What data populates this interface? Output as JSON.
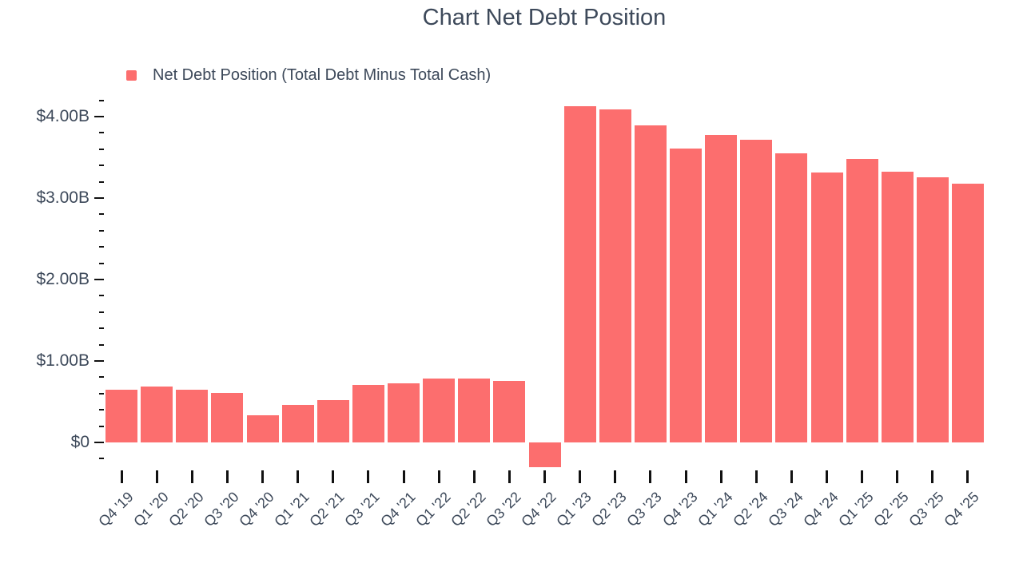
{
  "chart": {
    "title": "Chart Net Debt Position",
    "colors": {
      "bar": "#FC6E6E",
      "text": "#3D495A",
      "tick": "#111111",
      "background": "#FFFFFF"
    }
  },
  "chart_data": {
    "type": "bar",
    "title": "Chart Net Debt Position",
    "unit": "USD billions",
    "categories": [
      "Q4 '19",
      "Q1 '20",
      "Q2 '20",
      "Q3 '20",
      "Q4 '20",
      "Q1 '21",
      "Q2 '21",
      "Q3 '21",
      "Q4 '21",
      "Q1 '22",
      "Q2 '22",
      "Q3 '22",
      "Q4 '22",
      "Q1 '23",
      "Q2 '23",
      "Q3 '23",
      "Q4 '23",
      "Q1 '24",
      "Q2 '24",
      "Q3 '24",
      "Q4 '24",
      "Q1 '25",
      "Q2 '25",
      "Q3 '25",
      "Q4 '25"
    ],
    "series": [
      {
        "name": "Net Debt Position (Total Debt Minus Total Cash)",
        "color": "#FC6E6E",
        "values": [
          0.65,
          0.69,
          0.65,
          0.61,
          0.33,
          0.46,
          0.52,
          0.71,
          0.73,
          0.78,
          0.78,
          0.75,
          -0.3,
          4.13,
          4.09,
          3.89,
          3.61,
          3.77,
          3.72,
          3.55,
          3.31,
          3.48,
          3.32,
          3.25,
          3.18
        ]
      }
    ],
    "ylim": [
      -0.3,
      4.3
    ],
    "y_ticks": {
      "major": [
        {
          "value": 0,
          "label": "$0"
        },
        {
          "value": 1,
          "label": "$1.00B"
        },
        {
          "value": 2,
          "label": "$2.00B"
        },
        {
          "value": 3,
          "label": "$3.00B"
        },
        {
          "value": 4,
          "label": "$4.00B"
        }
      ],
      "minor_step": 0.2,
      "min": -0.2,
      "max": 4.2
    },
    "x_label_rotation": -45,
    "grid": false,
    "legend_position": "top-left"
  }
}
